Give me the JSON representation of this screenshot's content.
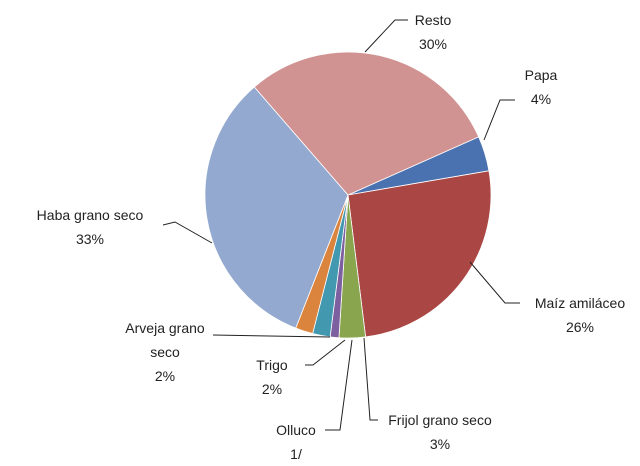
{
  "chart_data": {
    "type": "pie",
    "categories": [
      "Papa",
      "Maíz amiláceo",
      "Frijol grano seco",
      "Olluco",
      "Trigo",
      "Arveja grano seco",
      "Haba grano seco",
      "Resto"
    ],
    "values": [
      4,
      26,
      3,
      1,
      2,
      2,
      33,
      30
    ],
    "value_labels": [
      "4%",
      "26%",
      "3%",
      "1/",
      "2%",
      "2%",
      "33%",
      "30%"
    ],
    "colors": [
      "#4a72b0",
      "#aa4643",
      "#89a54e",
      "#7d60a0",
      "#4198af",
      "#db843d",
      "#93a9d0",
      "#d19392"
    ]
  }
}
